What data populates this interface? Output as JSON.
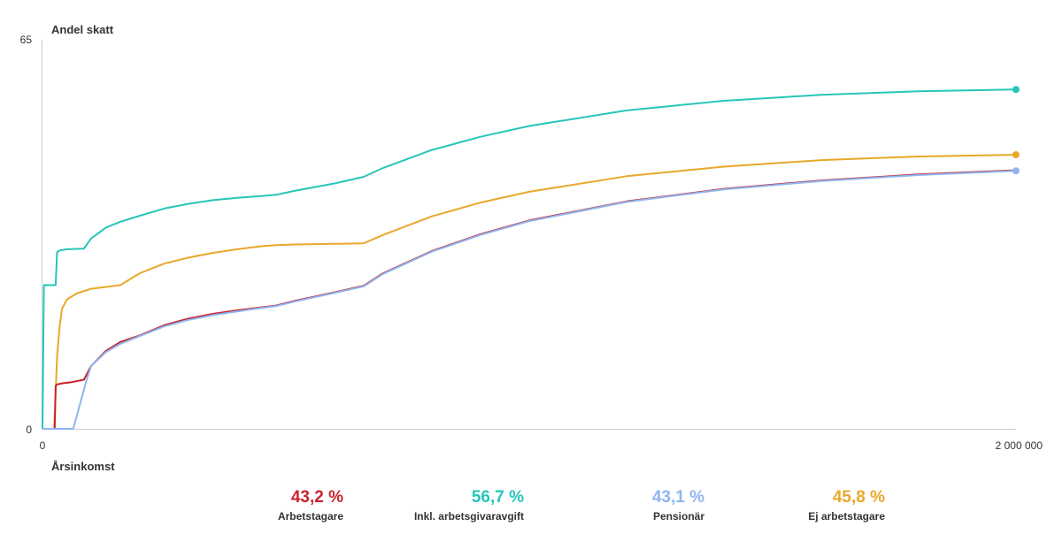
{
  "chart_data": {
    "type": "line",
    "ylabel": "Andel skatt",
    "xlabel": "Årsinkomst",
    "xlim": [
      0,
      2000000
    ],
    "ylim": [
      0,
      65
    ],
    "x_ticks": [
      "0",
      "2 000 000"
    ],
    "y_ticks": [
      "0",
      "65"
    ],
    "grid": false,
    "series": [
      {
        "name": "Arbetstagare",
        "color": "#c8232c",
        "end_value": 43.2,
        "end_label": "43,2 %",
        "points": [
          [
            0,
            0
          ],
          [
            25000,
            0
          ],
          [
            27000,
            7.2
          ],
          [
            30000,
            7.4
          ],
          [
            40000,
            7.6
          ],
          [
            60000,
            7.8
          ],
          [
            85000,
            8.2
          ],
          [
            100000,
            10.5
          ],
          [
            130000,
            13
          ],
          [
            160000,
            14.5
          ],
          [
            200000,
            15.6
          ],
          [
            250000,
            17.3
          ],
          [
            300000,
            18.4
          ],
          [
            350000,
            19.2
          ],
          [
            400000,
            19.8
          ],
          [
            450000,
            20.3
          ],
          [
            480000,
            20.6
          ],
          [
            520000,
            21.4
          ],
          [
            600000,
            22.8
          ],
          [
            660000,
            23.9
          ],
          [
            700000,
            26
          ],
          [
            800000,
            29.7
          ],
          [
            900000,
            32.5
          ],
          [
            1000000,
            34.8
          ],
          [
            1200000,
            38
          ],
          [
            1400000,
            40.1
          ],
          [
            1600000,
            41.5
          ],
          [
            1800000,
            42.5
          ],
          [
            2000000,
            43.2
          ]
        ]
      },
      {
        "name": "Inkl. arbetsgivaravgift",
        "color": "#26c6b9",
        "end_value": 56.7,
        "end_label": "56,7 %",
        "points": [
          [
            0,
            0
          ],
          [
            3000,
            24
          ],
          [
            27000,
            24
          ],
          [
            30000,
            29.5
          ],
          [
            35000,
            29.8
          ],
          [
            50000,
            30
          ],
          [
            85000,
            30.1
          ],
          [
            100000,
            31.8
          ],
          [
            130000,
            33.6
          ],
          [
            160000,
            34.6
          ],
          [
            200000,
            35.6
          ],
          [
            250000,
            36.8
          ],
          [
            300000,
            37.6
          ],
          [
            350000,
            38.2
          ],
          [
            400000,
            38.6
          ],
          [
            450000,
            38.9
          ],
          [
            480000,
            39.1
          ],
          [
            520000,
            39.8
          ],
          [
            600000,
            41
          ],
          [
            660000,
            42.1
          ],
          [
            700000,
            43.6
          ],
          [
            800000,
            46.6
          ],
          [
            900000,
            48.8
          ],
          [
            1000000,
            50.6
          ],
          [
            1200000,
            53.2
          ],
          [
            1400000,
            54.8
          ],
          [
            1600000,
            55.8
          ],
          [
            1800000,
            56.4
          ],
          [
            2000000,
            56.7
          ]
        ]
      },
      {
        "name": "Pensionär",
        "color": "#8eb5f0",
        "end_value": 43.1,
        "end_label": "43,1 %",
        "points": [
          [
            0,
            0
          ],
          [
            63000,
            0
          ],
          [
            70000,
            2
          ],
          [
            80000,
            5
          ],
          [
            90000,
            8
          ],
          [
            100000,
            10.5
          ],
          [
            130000,
            12.8
          ],
          [
            160000,
            14.2
          ],
          [
            200000,
            15.5
          ],
          [
            250000,
            17.1
          ],
          [
            300000,
            18.2
          ],
          [
            350000,
            19
          ],
          [
            400000,
            19.6
          ],
          [
            450000,
            20.2
          ],
          [
            480000,
            20.5
          ],
          [
            520000,
            21.3
          ],
          [
            600000,
            22.7
          ],
          [
            660000,
            23.8
          ],
          [
            700000,
            25.9
          ],
          [
            800000,
            29.6
          ],
          [
            900000,
            32.4
          ],
          [
            1000000,
            34.7
          ],
          [
            1200000,
            37.9
          ],
          [
            1400000,
            40
          ],
          [
            1600000,
            41.4
          ],
          [
            1800000,
            42.4
          ],
          [
            2000000,
            43.1
          ]
        ]
      },
      {
        "name": "Ej arbetstagare",
        "color": "#e8a82a",
        "end_value": 45.8,
        "end_label": "45,8 %",
        "points": [
          [
            0,
            0
          ],
          [
            24000,
            0
          ],
          [
            30000,
            12
          ],
          [
            35000,
            17
          ],
          [
            40000,
            20
          ],
          [
            50000,
            21.6
          ],
          [
            70000,
            22.6
          ],
          [
            100000,
            23.4
          ],
          [
            160000,
            24
          ],
          [
            200000,
            26
          ],
          [
            250000,
            27.6
          ],
          [
            300000,
            28.6
          ],
          [
            350000,
            29.4
          ],
          [
            400000,
            30
          ],
          [
            450000,
            30.5
          ],
          [
            480000,
            30.7
          ],
          [
            520000,
            30.8
          ],
          [
            600000,
            30.9
          ],
          [
            660000,
            31
          ],
          [
            700000,
            32.4
          ],
          [
            800000,
            35.5
          ],
          [
            900000,
            37.8
          ],
          [
            1000000,
            39.6
          ],
          [
            1200000,
            42.2
          ],
          [
            1400000,
            43.8
          ],
          [
            1600000,
            44.9
          ],
          [
            1800000,
            45.5
          ],
          [
            2000000,
            45.8
          ]
        ]
      }
    ]
  }
}
